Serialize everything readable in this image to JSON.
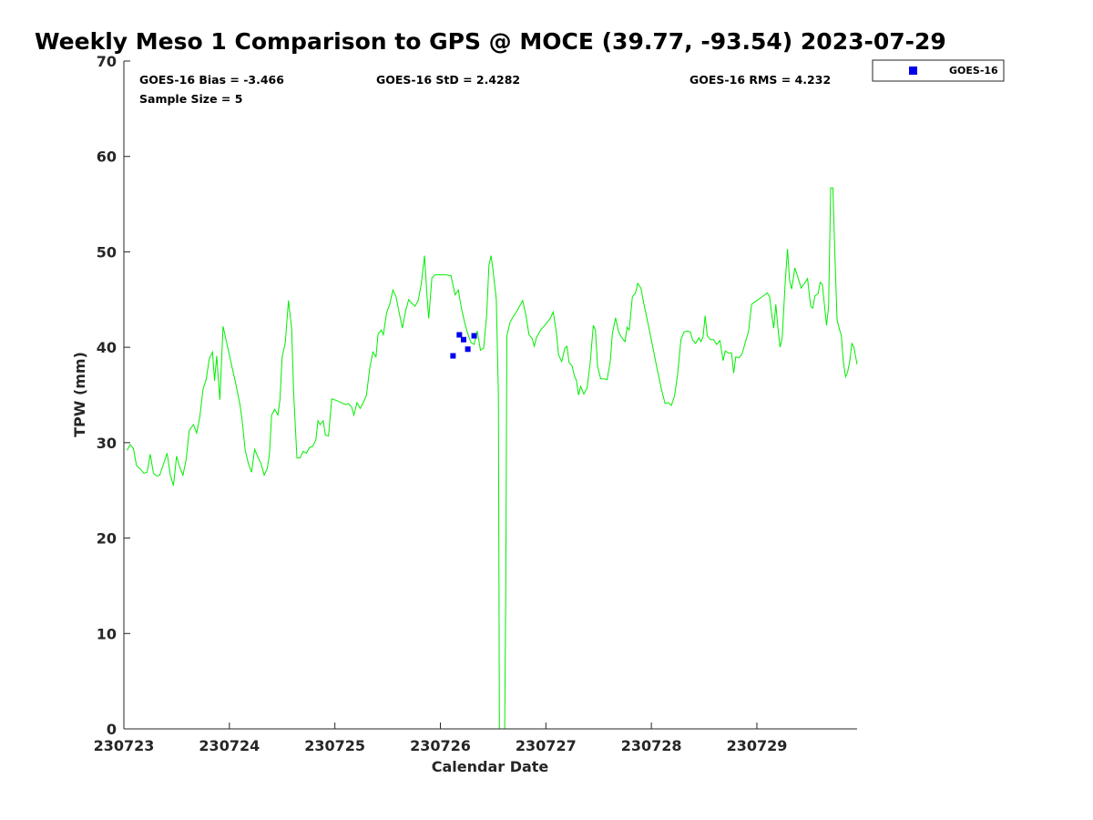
{
  "chart_data": {
    "type": "line",
    "title": "Weekly Meso 1 Comparison to GPS @ MOCE (39.77, -93.54) 2023-07-29",
    "xlabel": "Calendar Date",
    "ylabel": "TPW (mm)",
    "xlim": [
      0,
      6.95
    ],
    "ylim": [
      0,
      70
    ],
    "x_ticks": [
      0,
      1,
      2,
      3,
      4,
      5,
      6
    ],
    "x_tick_labels": [
      "230723",
      "230724",
      "230725",
      "230726",
      "230727",
      "230728",
      "230729"
    ],
    "y_ticks": [
      0,
      10,
      20,
      30,
      40,
      50,
      60,
      70
    ],
    "y_tick_labels": [
      "0",
      "10",
      "20",
      "30",
      "40",
      "50",
      "60",
      "70"
    ],
    "grid": false,
    "legend": {
      "placement": "top-right-outside",
      "entries": [
        {
          "name": "GOES-16",
          "color": "#0000ee",
          "marker": "square"
        }
      ]
    },
    "stats": {
      "bias": "GOES-16 Bias = -3.466",
      "std": "GOES-16 StD = 2.4282",
      "rms": "GOES-16 RMS = 4.232",
      "sample_size": "Sample Size = 5"
    },
    "series": [
      {
        "style": "line",
        "color": "#00ee00",
        "points": [
          [
            0.03,
            29.2
          ],
          [
            0.06,
            29.8
          ],
          [
            0.09,
            29.4
          ],
          [
            0.12,
            27.6
          ],
          [
            0.15,
            27.3
          ],
          [
            0.19,
            26.8
          ],
          [
            0.22,
            26.9
          ],
          [
            0.25,
            28.8
          ],
          [
            0.28,
            26.8
          ],
          [
            0.31,
            26.5
          ],
          [
            0.34,
            26.6
          ],
          [
            0.37,
            27.6
          ],
          [
            0.41,
            28.9
          ],
          [
            0.44,
            26.6
          ],
          [
            0.47,
            25.5
          ],
          [
            0.5,
            28.6
          ],
          [
            0.53,
            27.4
          ],
          [
            0.56,
            26.6
          ],
          [
            0.59,
            28.2
          ],
          [
            0.62,
            31.3
          ],
          [
            0.66,
            31.9
          ],
          [
            0.69,
            31.0
          ],
          [
            0.72,
            32.7
          ],
          [
            0.75,
            35.6
          ],
          [
            0.78,
            36.6
          ],
          [
            0.81,
            38.8
          ],
          [
            0.84,
            39.5
          ],
          [
            0.86,
            36.5
          ],
          [
            0.88,
            39.1
          ],
          [
            0.91,
            34.5
          ],
          [
            0.94,
            42.2
          ],
          [
            0.98,
            40.2
          ],
          [
            1.02,
            38.2
          ],
          [
            1.06,
            36.2
          ],
          [
            1.1,
            34.0
          ],
          [
            1.12,
            32.5
          ],
          [
            1.15,
            29.2
          ],
          [
            1.18,
            27.8
          ],
          [
            1.21,
            26.9
          ],
          [
            1.24,
            29.3
          ],
          [
            1.27,
            28.5
          ],
          [
            1.3,
            27.8
          ],
          [
            1.33,
            26.6
          ],
          [
            1.36,
            27.3
          ],
          [
            1.38,
            28.8
          ],
          [
            1.4,
            32.9
          ],
          [
            1.43,
            33.5
          ],
          [
            1.46,
            32.9
          ],
          [
            1.48,
            34.5
          ],
          [
            1.5,
            38.9
          ],
          [
            1.53,
            40.5
          ],
          [
            1.56,
            44.9
          ],
          [
            1.59,
            42.0
          ],
          [
            1.61,
            35.0
          ],
          [
            1.64,
            28.4
          ],
          [
            1.67,
            28.4
          ],
          [
            1.7,
            29.1
          ],
          [
            1.73,
            28.9
          ],
          [
            1.76,
            29.5
          ],
          [
            1.79,
            29.6
          ],
          [
            1.82,
            30.3
          ],
          [
            1.84,
            32.3
          ],
          [
            1.86,
            31.9
          ],
          [
            1.89,
            32.3
          ],
          [
            1.91,
            30.8
          ],
          [
            1.94,
            30.7
          ],
          [
            1.97,
            34.6
          ],
          [
            2.02,
            34.4
          ],
          [
            2.06,
            34.2
          ],
          [
            2.1,
            34.0
          ],
          [
            2.13,
            34.1
          ],
          [
            2.16,
            33.7
          ],
          [
            2.18,
            32.9
          ],
          [
            2.21,
            34.2
          ],
          [
            2.24,
            33.6
          ],
          [
            2.27,
            34.2
          ],
          [
            2.3,
            35.0
          ],
          [
            2.33,
            37.8
          ],
          [
            2.36,
            39.5
          ],
          [
            2.39,
            39.0
          ],
          [
            2.41,
            41.4
          ],
          [
            2.44,
            41.8
          ],
          [
            2.46,
            41.3
          ],
          [
            2.49,
            43.6
          ],
          [
            2.52,
            44.5
          ],
          [
            2.55,
            46.0
          ],
          [
            2.58,
            45.3
          ],
          [
            2.61,
            43.6
          ],
          [
            2.64,
            42.0
          ],
          [
            2.67,
            43.8
          ],
          [
            2.7,
            45.0
          ],
          [
            2.73,
            44.6
          ],
          [
            2.76,
            44.3
          ],
          [
            2.79,
            44.9
          ],
          [
            2.82,
            46.7
          ],
          [
            2.85,
            49.6
          ],
          [
            2.87,
            46.0
          ],
          [
            2.89,
            43.0
          ],
          [
            2.92,
            47.3
          ],
          [
            2.95,
            47.6
          ],
          [
            3.0,
            47.6
          ],
          [
            3.05,
            47.6
          ],
          [
            3.1,
            47.5
          ],
          [
            3.14,
            45.5
          ],
          [
            3.17,
            46.0
          ],
          [
            3.2,
            44.1
          ],
          [
            3.23,
            42.6
          ],
          [
            3.26,
            41.4
          ],
          [
            3.29,
            40.5
          ],
          [
            3.32,
            40.3
          ],
          [
            3.35,
            41.7
          ],
          [
            3.38,
            39.7
          ],
          [
            3.41,
            39.9
          ],
          [
            3.44,
            43.5
          ],
          [
            3.46,
            48.6
          ],
          [
            3.48,
            49.6
          ],
          [
            3.5,
            48.0
          ],
          [
            3.53,
            45.0
          ],
          [
            3.55,
            35.0
          ],
          [
            3.56,
            0
          ],
          [
            3.61,
            0
          ],
          [
            3.62,
            15.0
          ],
          [
            3.63,
            41.2
          ],
          [
            3.66,
            42.6
          ],
          [
            3.69,
            43.2
          ],
          [
            3.72,
            43.7
          ],
          [
            3.75,
            44.3
          ],
          [
            3.78,
            44.9
          ],
          [
            3.81,
            43.4
          ],
          [
            3.84,
            41.3
          ],
          [
            3.87,
            40.9
          ],
          [
            3.89,
            40.1
          ],
          [
            3.91,
            41.0
          ],
          [
            3.95,
            41.8
          ],
          [
            3.99,
            42.3
          ],
          [
            4.04,
            43.0
          ],
          [
            4.07,
            43.7
          ],
          [
            4.1,
            41.5
          ],
          [
            4.12,
            39.2
          ],
          [
            4.15,
            38.5
          ],
          [
            4.18,
            39.9
          ],
          [
            4.2,
            40.1
          ],
          [
            4.22,
            38.4
          ],
          [
            4.25,
            38.0
          ],
          [
            4.27,
            37.0
          ],
          [
            4.29,
            36.5
          ],
          [
            4.31,
            35.0
          ],
          [
            4.33,
            35.9
          ],
          [
            4.36,
            35.1
          ],
          [
            4.39,
            35.7
          ],
          [
            4.42,
            38.4
          ],
          [
            4.45,
            42.3
          ],
          [
            4.47,
            41.8
          ],
          [
            4.49,
            38.0
          ],
          [
            4.52,
            36.7
          ],
          [
            4.55,
            36.7
          ],
          [
            4.58,
            36.6
          ],
          [
            4.61,
            38.5
          ],
          [
            4.63,
            41.4
          ],
          [
            4.66,
            43.1
          ],
          [
            4.69,
            41.6
          ],
          [
            4.72,
            41.0
          ],
          [
            4.75,
            40.6
          ],
          [
            4.77,
            42.1
          ],
          [
            4.79,
            41.8
          ],
          [
            4.82,
            45.3
          ],
          [
            4.85,
            45.7
          ],
          [
            4.87,
            46.7
          ],
          [
            4.9,
            46.2
          ],
          [
            4.93,
            44.5
          ],
          [
            4.97,
            42.4
          ],
          [
            5.01,
            40.2
          ],
          [
            5.05,
            38.0
          ],
          [
            5.1,
            35.4
          ],
          [
            5.13,
            34.1
          ],
          [
            5.16,
            34.2
          ],
          [
            5.19,
            33.9
          ],
          [
            5.22,
            34.9
          ],
          [
            5.25,
            37.3
          ],
          [
            5.28,
            40.8
          ],
          [
            5.31,
            41.6
          ],
          [
            5.34,
            41.7
          ],
          [
            5.37,
            41.6
          ],
          [
            5.39,
            40.8
          ],
          [
            5.42,
            40.4
          ],
          [
            5.45,
            41.0
          ],
          [
            5.47,
            40.6
          ],
          [
            5.49,
            41.1
          ],
          [
            5.51,
            43.3
          ],
          [
            5.53,
            41.2
          ],
          [
            5.56,
            40.8
          ],
          [
            5.59,
            40.8
          ],
          [
            5.62,
            40.3
          ],
          [
            5.65,
            40.7
          ],
          [
            5.68,
            38.6
          ],
          [
            5.7,
            39.6
          ],
          [
            5.73,
            39.4
          ],
          [
            5.76,
            39.4
          ],
          [
            5.78,
            37.3
          ],
          [
            5.8,
            39.0
          ],
          [
            5.83,
            38.9
          ],
          [
            5.86,
            39.3
          ],
          [
            5.89,
            40.5
          ],
          [
            5.92,
            41.6
          ],
          [
            5.95,
            44.5
          ],
          [
            6.0,
            44.9
          ],
          [
            6.05,
            45.3
          ],
          [
            6.1,
            45.7
          ],
          [
            6.12,
            45.3
          ],
          [
            6.14,
            43.5
          ],
          [
            6.16,
            42.0
          ],
          [
            6.18,
            44.5
          ],
          [
            6.2,
            42.0
          ],
          [
            6.22,
            40.0
          ],
          [
            6.24,
            41.0
          ],
          [
            6.27,
            47.0
          ],
          [
            6.29,
            50.3
          ],
          [
            6.31,
            47.0
          ],
          [
            6.33,
            46.1
          ],
          [
            6.36,
            48.3
          ],
          [
            6.39,
            47.3
          ],
          [
            6.42,
            46.2
          ],
          [
            6.45,
            46.7
          ],
          [
            6.48,
            47.2
          ],
          [
            6.51,
            44.3
          ],
          [
            6.53,
            44.1
          ],
          [
            6.55,
            45.4
          ],
          [
            6.58,
            45.6
          ],
          [
            6.6,
            46.8
          ],
          [
            6.62,
            46.6
          ],
          [
            6.64,
            44.5
          ],
          [
            6.66,
            42.3
          ],
          [
            6.68,
            44.2
          ],
          [
            6.7,
            56.7
          ],
          [
            6.72,
            56.7
          ],
          [
            6.74,
            49.5
          ],
          [
            6.76,
            42.9
          ],
          [
            6.78,
            42.0
          ],
          [
            6.8,
            41.3
          ],
          [
            6.82,
            38.5
          ],
          [
            6.84,
            36.9
          ],
          [
            6.86,
            37.4
          ],
          [
            6.88,
            38.5
          ],
          [
            6.9,
            40.4
          ],
          [
            6.92,
            40.0
          ],
          [
            6.95,
            38.2
          ]
        ]
      },
      {
        "name": "GOES-16",
        "style": "scatter",
        "color": "#0000ee",
        "points": [
          [
            3.12,
            39.1
          ],
          [
            3.18,
            41.3
          ],
          [
            3.22,
            40.8
          ],
          [
            3.26,
            39.8
          ],
          [
            3.32,
            41.2
          ]
        ]
      }
    ]
  }
}
